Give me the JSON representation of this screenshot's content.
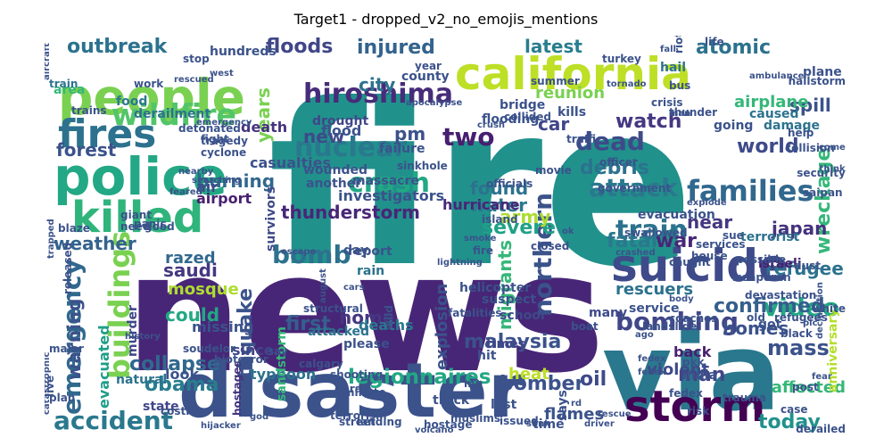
{
  "title": "Target1 - dropped_v2_no_emojis_mentions",
  "colors": {
    "background": "#ffffff",
    "palette_note": "viridis"
  },
  "words": [
    {
      "text": "fire",
      "color": "#21918c"
    },
    {
      "text": "news",
      "color": "#482677"
    },
    {
      "text": "disaster",
      "color": "#3b528b"
    },
    {
      "text": "via",
      "color": "#2a788e"
    },
    {
      "text": "people",
      "color": "#7ad151"
    },
    {
      "text": "california",
      "color": "#bddf26"
    },
    {
      "text": "police",
      "color": "#22a884"
    },
    {
      "text": "killed",
      "color": "#2fb47c"
    },
    {
      "text": "fires",
      "color": "#2c728e"
    },
    {
      "text": "storm",
      "color": "#440154"
    },
    {
      "text": "suicide",
      "color": "#3e4a89"
    },
    {
      "text": "hiroshima",
      "color": "#472c7a"
    },
    {
      "text": "wildfire",
      "color": "#52c569"
    },
    {
      "text": "crash",
      "color": "#22a884"
    },
    {
      "text": "nuclear",
      "color": "#2a788e"
    },
    {
      "text": "families",
      "color": "#31688e"
    },
    {
      "text": "attack",
      "color": "#2a788e"
    },
    {
      "text": "bombing",
      "color": "#404688"
    },
    {
      "text": "emergency",
      "color": "#31688e"
    },
    {
      "text": "buildings",
      "color": "#7ad151"
    },
    {
      "text": "accident",
      "color": "#2a788e"
    },
    {
      "text": "earthquake",
      "color": "#3b528b"
    },
    {
      "text": "train",
      "color": "#2c728e"
    },
    {
      "text": "video",
      "color": "#22a884"
    },
    {
      "text": "northern",
      "color": "#3b528b"
    },
    {
      "text": "dead",
      "color": "#3e4a89"
    },
    {
      "text": "two",
      "color": "#481f70"
    },
    {
      "text": "bomb",
      "color": "#2c728e"
    },
    {
      "text": "outbreak",
      "color": "#2c728e"
    },
    {
      "text": "mass",
      "color": "#3b528b"
    },
    {
      "text": "legionnaires",
      "color": "#22a884"
    },
    {
      "text": "collapse",
      "color": "#31688e"
    },
    {
      "text": "injured",
      "color": "#33638d"
    },
    {
      "text": "floods",
      "color": "#404688"
    },
    {
      "text": "atomic",
      "color": "#2c728e"
    },
    {
      "text": "watch",
      "color": "#453781"
    },
    {
      "text": "severe",
      "color": "#1fa187"
    },
    {
      "text": "fatal",
      "color": "#2a788e"
    },
    {
      "text": "war",
      "color": "#482677"
    },
    {
      "text": "world",
      "color": "#3e4a89"
    },
    {
      "text": "wreckage",
      "color": "#35b779"
    },
    {
      "text": "debris",
      "color": "#2c728e"
    },
    {
      "text": "confirmed",
      "color": "#355f8d"
    },
    {
      "text": "man",
      "color": "#404688"
    },
    {
      "text": "oil",
      "color": "#3e4a89"
    },
    {
      "text": "bomber",
      "color": "#3b528b"
    },
    {
      "text": "today",
      "color": "#21918c"
    },
    {
      "text": "obama",
      "color": "#287d8e"
    },
    {
      "text": "malaysia",
      "color": "#3b528b"
    },
    {
      "text": "thunderstorm",
      "color": "#482677"
    },
    {
      "text": "found",
      "color": "#2c728e"
    },
    {
      "text": "army",
      "color": "#addc30"
    },
    {
      "text": "weather",
      "color": "#33638d"
    },
    {
      "text": "first",
      "color": "#355f8d"
    },
    {
      "text": "home",
      "color": "#453781"
    },
    {
      "text": "japan",
      "color": "#46327e"
    },
    {
      "text": "burning",
      "color": "#31688e"
    },
    {
      "text": "forest",
      "color": "#3b528b"
    },
    {
      "text": "new",
      "color": "#3e4a89"
    },
    {
      "text": "pm",
      "color": "#3b528b"
    },
    {
      "text": "city",
      "color": "#2c728e"
    },
    {
      "text": "latest",
      "color": "#287d8e"
    },
    {
      "text": "water",
      "color": "#2a788e"
    },
    {
      "text": "homes",
      "color": "#3b528b"
    },
    {
      "text": "could",
      "color": "#22a884"
    },
    {
      "text": "warning",
      "color": "#3b528b"
    },
    {
      "text": "migrants",
      "color": "#35b779"
    },
    {
      "text": "evacuated",
      "color": "#1f9e89"
    },
    {
      "text": "refugee",
      "color": "#2c728e"
    },
    {
      "text": "look",
      "color": "#3b528b"
    },
    {
      "text": "years",
      "color": "#7ad151"
    },
    {
      "text": "near",
      "color": "#453781"
    },
    {
      "text": "car",
      "color": "#404688"
    },
    {
      "text": "spill",
      "color": "#3b528b"
    },
    {
      "text": "airplane",
      "color": "#35b779"
    },
    {
      "text": "hurricane",
      "color": "#482677"
    },
    {
      "text": "explosion",
      "color": "#3b528b"
    },
    {
      "text": "heat",
      "color": "#bddf26"
    },
    {
      "text": "flames",
      "color": "#3b528b"
    },
    {
      "text": "rescuers",
      "color": "#2c728e"
    },
    {
      "text": "violent",
      "color": "#3e4a89"
    },
    {
      "text": "back",
      "color": "#481f70"
    },
    {
      "text": "affected",
      "color": "#35b779"
    },
    {
      "text": "saudi",
      "color": "#453781"
    },
    {
      "text": "mosque",
      "color": "#addc30"
    },
    {
      "text": "razed",
      "color": "#31688e"
    },
    {
      "text": "missing",
      "color": "#3b528b"
    },
    {
      "text": "murder",
      "color": "#404688"
    },
    {
      "text": "since",
      "color": "#404688"
    },
    {
      "text": "typhoon",
      "color": "#2c728e"
    },
    {
      "text": "natural",
      "color": "#2c728e"
    },
    {
      "text": "state",
      "color": "#404688"
    },
    {
      "text": "deaths",
      "color": "#2a788e"
    },
    {
      "text": "casualties",
      "color": "#3b528b"
    },
    {
      "text": "death",
      "color": "#46327e"
    },
    {
      "text": "air",
      "color": "#3e4a89"
    },
    {
      "text": "airport",
      "color": "#481f70"
    },
    {
      "text": "survivors",
      "color": "#3e4a89"
    },
    {
      "text": "investigators",
      "color": "#3b528b"
    },
    {
      "text": "drought",
      "color": "#404688"
    },
    {
      "text": "flood",
      "color": "#3b528b"
    },
    {
      "text": "wounded",
      "color": "#3b528b"
    },
    {
      "text": "another",
      "color": "#3b528b"
    },
    {
      "text": "massacre",
      "color": "#3b528b"
    },
    {
      "text": "reunion",
      "color": "#7ad151"
    },
    {
      "text": "evacuation",
      "color": "#3b528b"
    },
    {
      "text": "terrorist",
      "color": "#2c728e"
    },
    {
      "text": "israeli",
      "color": "#481f70"
    },
    {
      "text": "going",
      "color": "#3b528b"
    },
    {
      "text": "caused",
      "color": "#2c728e"
    },
    {
      "text": "damage",
      "color": "#2c728e"
    },
    {
      "text": "plane",
      "color": "#3b528b"
    },
    {
      "text": "hail",
      "color": "#2c728e"
    },
    {
      "text": "food",
      "color": "#2a788e"
    },
    {
      "text": "derailment",
      "color": "#2c728e"
    },
    {
      "text": "area",
      "color": "#35b779"
    },
    {
      "text": "hundreds",
      "color": "#3b528b"
    },
    {
      "text": "train",
      "color": "#2c728e"
    },
    {
      "text": "says",
      "color": "#3b528b"
    },
    {
      "text": "service",
      "color": "#3b528b"
    },
    {
      "text": "many",
      "color": "#3e4a89"
    },
    {
      "text": "school",
      "color": "#3e4a89"
    },
    {
      "text": "helicopter",
      "color": "#3b528b"
    },
    {
      "text": "suspect",
      "color": "#3b528b"
    },
    {
      "text": "fatalities",
      "color": "#3b528b"
    },
    {
      "text": "times",
      "color": "#404688"
    },
    {
      "text": "hit",
      "color": "#3b528b"
    },
    {
      "text": "attacked",
      "color": "#2c728e"
    },
    {
      "text": "please",
      "color": "#3b528b"
    },
    {
      "text": "rain",
      "color": "#2c728e"
    },
    {
      "text": "report",
      "color": "#3b528b"
    },
    {
      "text": "sandstorm",
      "color": "#35b779"
    },
    {
      "text": "hostages",
      "color": "#46327e"
    },
    {
      "text": "truck",
      "color": "#3b528b"
    },
    {
      "text": "last",
      "color": "#3b528b"
    },
    {
      "text": "minute",
      "color": "#3b528b"
    },
    {
      "text": "india",
      "color": "#3b528b"
    },
    {
      "text": "pkk",
      "color": "#3b528b"
    },
    {
      "text": "got",
      "color": "#3b528b"
    },
    {
      "text": "old",
      "color": "#3b528b"
    },
    {
      "text": "help",
      "color": "#3b528b"
    },
    {
      "text": "life",
      "color": "#3b528b"
    },
    {
      "text": "county",
      "color": "#3b528b"
    },
    {
      "text": "year",
      "color": "#3b528b"
    },
    {
      "text": "turkey",
      "color": "#3b528b"
    },
    {
      "text": "time",
      "color": "#3b528b"
    },
    {
      "text": "live",
      "color": "#3b528b"
    },
    {
      "text": "say",
      "color": "#3b528b"
    },
    {
      "text": "anniversary",
      "color": "#b5de2b"
    },
    {
      "text": "dust",
      "color": "#3b528b"
    },
    {
      "text": "iran",
      "color": "#3b528b"
    },
    {
      "text": "island",
      "color": "#3b528b"
    },
    {
      "text": "officials",
      "color": "#3b528b"
    },
    {
      "text": "kills",
      "color": "#3b528b"
    },
    {
      "text": "sinkhole",
      "color": "#3b528b"
    },
    {
      "text": "bridge",
      "color": "#3b528b"
    },
    {
      "text": "failure",
      "color": "#3b528b"
    },
    {
      "text": "flooding",
      "color": "#3b528b"
    },
    {
      "text": "calgary",
      "color": "#3b528b"
    },
    {
      "text": "structural",
      "color": "#3b528b"
    },
    {
      "text": "boat",
      "color": "#3b528b"
    },
    {
      "text": "derailed",
      "color": "#3b528b"
    },
    {
      "text": "trains",
      "color": "#3b528b"
    },
    {
      "text": "crisis",
      "color": "#3b528b"
    },
    {
      "text": "bus",
      "color": "#3b528b"
    },
    {
      "text": "wild",
      "color": "#3b528b"
    },
    {
      "text": "work",
      "color": "#3b528b"
    },
    {
      "text": "cyclone",
      "color": "#3b528b"
    },
    {
      "text": "tragedy",
      "color": "#3b528b"
    },
    {
      "text": "terrorism",
      "color": "#3b528b"
    },
    {
      "text": "swallowed",
      "color": "#3b528b"
    },
    {
      "text": "landslide",
      "color": "#3b528b"
    },
    {
      "text": "collision",
      "color": "#3b528b"
    },
    {
      "text": "security",
      "color": "#3b528b"
    },
    {
      "text": "saipan",
      "color": "#3b528b"
    },
    {
      "text": "fedex",
      "color": "#3b528b"
    },
    {
      "text": "rescue",
      "color": "#3b528b"
    },
    {
      "text": "post",
      "color": "#3b528b"
    },
    {
      "text": "case",
      "color": "#3b528b"
    },
    {
      "text": "fear",
      "color": "#3b528b"
    },
    {
      "text": "devastation",
      "color": "#3b528b"
    },
    {
      "text": "bioterror",
      "color": "#3b528b"
    },
    {
      "text": "fight",
      "color": "#3b528b"
    },
    {
      "text": "major",
      "color": "#3b528b"
    },
    {
      "text": "history",
      "color": "#3b528b"
    },
    {
      "text": "soudelor",
      "color": "#3b528b"
    },
    {
      "text": "street",
      "color": "#3b528b"
    },
    {
      "text": "landing",
      "color": "#3b528b"
    },
    {
      "text": "costlier",
      "color": "#3b528b"
    },
    {
      "text": "mp",
      "color": "#3b528b"
    },
    {
      "text": "muslims",
      "color": "#3b528b"
    },
    {
      "text": "hostage",
      "color": "#3b528b"
    },
    {
      "text": "volcano",
      "color": "#3b528b"
    },
    {
      "text": "issued",
      "color": "#3b528b"
    },
    {
      "text": "trauma",
      "color": "#3b528b"
    },
    {
      "text": "risk",
      "color": "#3b528b"
    },
    {
      "text": "government",
      "color": "#3b528b"
    },
    {
      "text": "fedex",
      "color": "#3b528b"
    },
    {
      "text": "officer",
      "color": "#3b528b"
    },
    {
      "text": "traffic",
      "color": "#3b528b"
    },
    {
      "text": "summer",
      "color": "#3b528b"
    },
    {
      "text": "detonated",
      "color": "#3b528b"
    },
    {
      "text": "released",
      "color": "#3b528b"
    },
    {
      "text": "giant",
      "color": "#3b528b"
    },
    {
      "text": "need",
      "color": "#3b528b"
    },
    {
      "text": "good",
      "color": "#3b528b"
    },
    {
      "text": "plan",
      "color": "#3b528b"
    },
    {
      "text": "thunder",
      "color": "#3b528b"
    },
    {
      "text": "hailstorm",
      "color": "#3b528b"
    },
    {
      "text": "rioting",
      "color": "#3b528b"
    },
    {
      "text": "collided",
      "color": "#3b528b"
    },
    {
      "text": "panic",
      "color": "#3b528b"
    },
    {
      "text": "blaze",
      "color": "#3b528b"
    },
    {
      "text": "stop",
      "color": "#3b528b"
    },
    {
      "text": "sue",
      "color": "#3b528b"
    },
    {
      "text": "caught",
      "color": "#3b528b"
    },
    {
      "text": "possible",
      "color": "#3b528b"
    },
    {
      "text": "weapon",
      "color": "#3b528b"
    },
    {
      "text": "refugees",
      "color": "#3b528b"
    },
    {
      "text": "white",
      "color": "#3b528b"
    },
    {
      "text": "black",
      "color": "#3b528b"
    },
    {
      "text": "coaches",
      "color": "#3b528b"
    },
    {
      "text": "services",
      "color": "#3b528b"
    },
    {
      "text": "house",
      "color": "#3b528b"
    },
    {
      "text": "closed",
      "color": "#3b528b"
    },
    {
      "text": "trapped",
      "color": "#3b528b"
    },
    {
      "text": "shooting",
      "color": "#3b528b"
    },
    {
      "text": "derail",
      "color": "#3b528b"
    },
    {
      "text": "escape",
      "color": "#3b528b"
    },
    {
      "text": "apocalypse",
      "color": "#3b528b"
    },
    {
      "text": "lightning",
      "color": "#3b528b"
    },
    {
      "text": "smoke",
      "color": "#3b528b"
    },
    {
      "text": "aircraft",
      "color": "#3b528b"
    },
    {
      "text": "rescued",
      "color": "#3b528b"
    },
    {
      "text": "movie",
      "color": "#3b528b"
    },
    {
      "text": "fire",
      "color": "#3b528b"
    },
    {
      "text": "day",
      "color": "#3b528b"
    },
    {
      "text": "cars",
      "color": "#3b528b"
    },
    {
      "text": "ok",
      "color": "#3b528b"
    },
    {
      "text": "tornado",
      "color": "#3b528b"
    },
    {
      "text": "body",
      "color": "#3b528b"
    },
    {
      "text": "rd",
      "color": "#3b528b"
    },
    {
      "text": "explode",
      "color": "#3b528b"
    },
    {
      "text": "god",
      "color": "#3b528b"
    },
    {
      "text": "hijacker",
      "color": "#3b528b"
    },
    {
      "text": "catastrophic",
      "color": "#3b528b"
    },
    {
      "text": "driver",
      "color": "#3b528b"
    },
    {
      "text": "come",
      "color": "#3b528b"
    },
    {
      "text": "think",
      "color": "#3b528b"
    },
    {
      "text": "man",
      "color": "#3b528b"
    },
    {
      "text": "west",
      "color": "#3b528b"
    },
    {
      "text": "emergency",
      "color": "#3b528b"
    },
    {
      "text": "fedex",
      "color": "#3b528b"
    },
    {
      "text": "sunk",
      "color": "#3b528b"
    },
    {
      "text": "crush",
      "color": "#3b528b"
    },
    {
      "text": "feared",
      "color": "#3b528b"
    },
    {
      "text": "nearby",
      "color": "#3b528b"
    },
    {
      "text": "searching",
      "color": "#3b528b"
    },
    {
      "text": "ago",
      "color": "#3b528b"
    },
    {
      "text": "pic",
      "color": "#3b528b"
    },
    {
      "text": "fall",
      "color": "#3b528b"
    },
    {
      "text": "crashed",
      "color": "#3b528b"
    },
    {
      "text": "august",
      "color": "#3b528b"
    },
    {
      "text": "declaration",
      "color": "#3b528b"
    },
    {
      "text": "ambulance",
      "color": "#3b528b"
    }
  ]
}
